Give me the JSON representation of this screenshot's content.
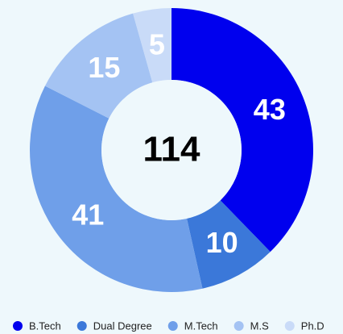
{
  "chart_data": {
    "type": "donut",
    "categories": [
      "B.Tech",
      "Dual Degree",
      "M.Tech",
      "M.S",
      "Ph.D"
    ],
    "values": [
      43,
      10,
      41,
      15,
      5
    ],
    "colors": [
      "#0000ee",
      "#3b78d9",
      "#6f9fe9",
      "#a4c3f3",
      "#c9dbf8"
    ],
    "center_label": 114,
    "legend": "bottom"
  }
}
